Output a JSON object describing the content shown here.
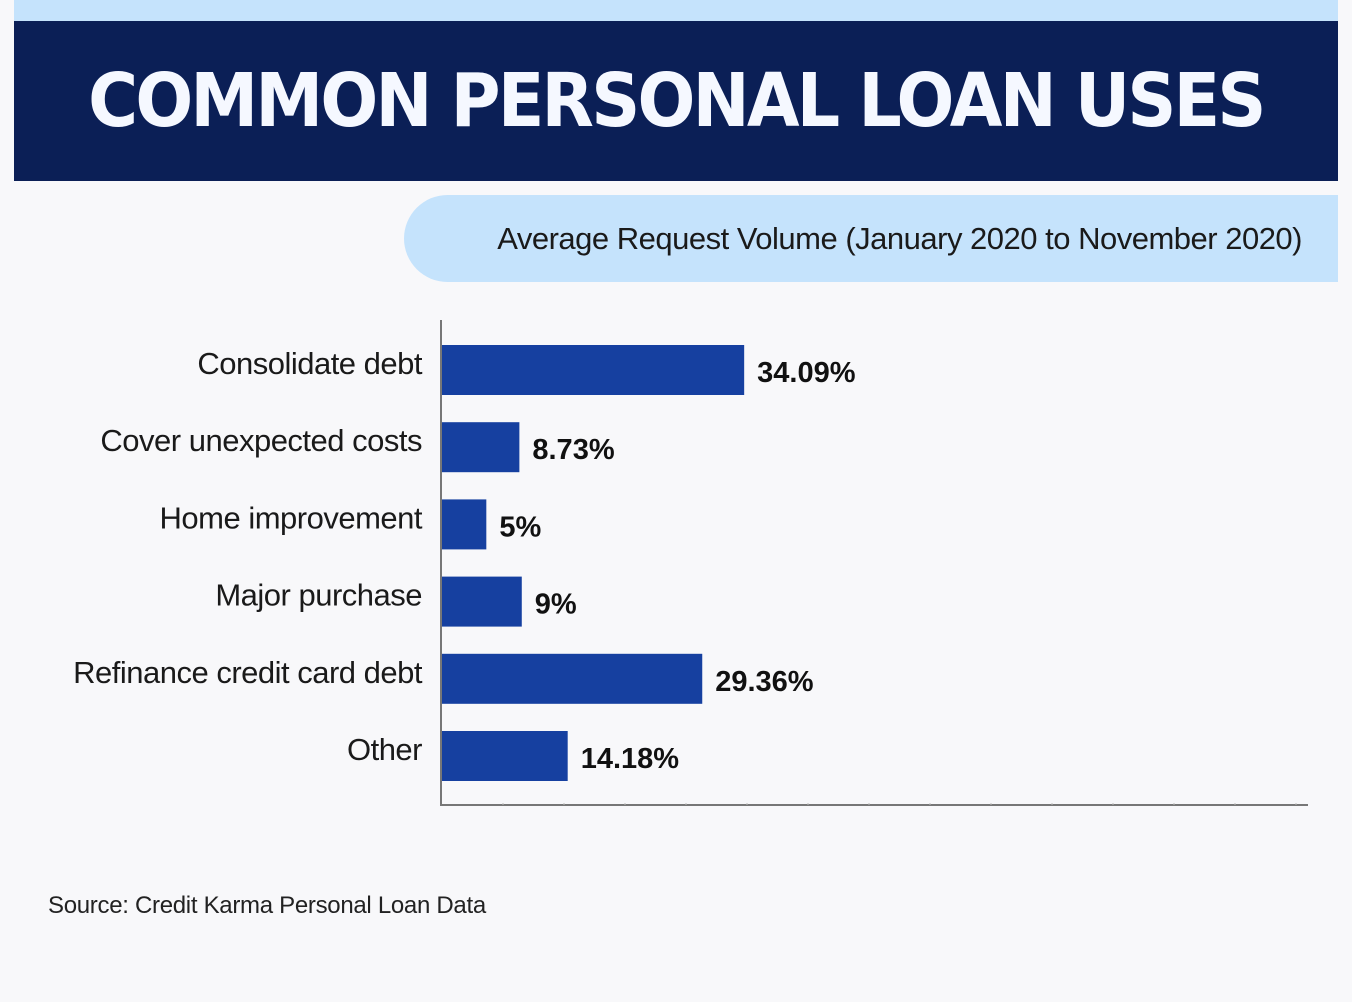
{
  "header": {
    "title": "COMMON PERSONAL LOAN USES",
    "subtitle": "Average Request Volume (January 2020 to November 2020)"
  },
  "colors": {
    "banner": "#0b1f56",
    "bar": "#1640a0",
    "pill": "#c5e3fc",
    "background": "#f8f8fa"
  },
  "chart_data": {
    "type": "bar",
    "orientation": "horizontal",
    "title": "COMMON PERSONAL LOAN USES",
    "subtitle": "Average Request Volume (January 2020 to November 2020)",
    "categories": [
      "Consolidate debt",
      "Cover unexpected costs",
      "Home improvement",
      "Major purchase",
      "Refinance credit card debt",
      "Other"
    ],
    "values": [
      34.09,
      8.73,
      5,
      9,
      29.36,
      14.18
    ],
    "data_labels": [
      "34.09%",
      "8.73%",
      "5%",
      "9%",
      "29.36%",
      "14.18%"
    ],
    "xlabel": "",
    "ylabel": "",
    "xlim": [
      0,
      97.7
    ],
    "grid": false,
    "legend": "none"
  },
  "footer": {
    "source": "Source: Credit Karma Personal Loan Data"
  }
}
